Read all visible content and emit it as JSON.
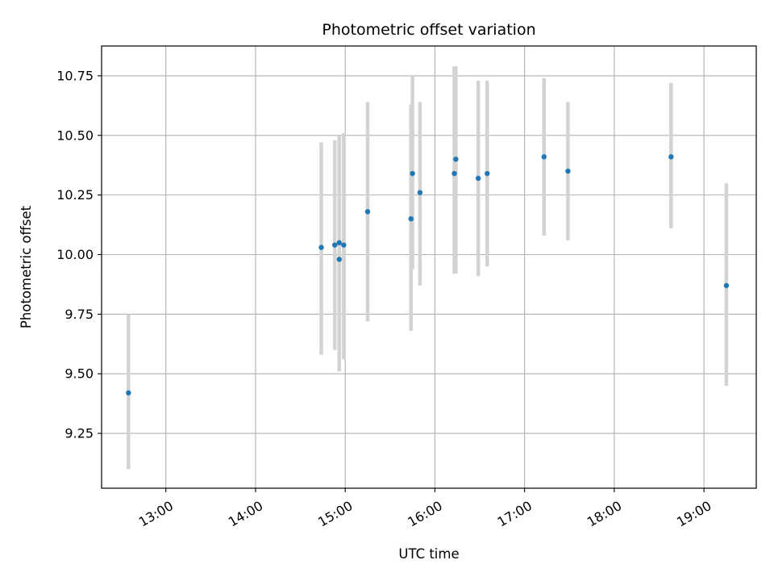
{
  "chart_data": {
    "type": "scatter",
    "title": "Photometric offset variation",
    "xlabel": "UTC time",
    "ylabel": "Photometric offset",
    "x_unit": "hours UTC",
    "xlim": [
      "12:17",
      "19:35"
    ],
    "ylim": [
      9.02,
      10.875
    ],
    "x_ticks": [
      "13:00",
      "14:00",
      "15:00",
      "16:00",
      "17:00",
      "18:00",
      "19:00"
    ],
    "y_ticks": [
      "9.25",
      "9.50",
      "9.75",
      "10.00",
      "10.25",
      "10.50",
      "10.75"
    ],
    "x_tick_rotation": "30 degrees",
    "grid": true,
    "legend": "none",
    "colors": {
      "point": "#1f77b4",
      "errorbar": "#d3d3d3",
      "grid": "#b0b0b0"
    },
    "points": [
      {
        "x": "12:35",
        "y": 9.42,
        "ylow": 9.1,
        "yhigh": 9.75
      },
      {
        "x": "14:44",
        "y": 10.03,
        "ylow": 9.58,
        "yhigh": 10.47
      },
      {
        "x": "14:53",
        "y": 10.04,
        "ylow": 9.6,
        "yhigh": 10.48
      },
      {
        "x": "14:56",
        "y": 9.98,
        "ylow": 9.51,
        "yhigh": 10.5
      },
      {
        "x": "14:56",
        "y": 10.05,
        "ylow": 9.52,
        "yhigh": 10.49
      },
      {
        "x": "14:59",
        "y": 10.04,
        "ylow": 9.56,
        "yhigh": 10.51
      },
      {
        "x": "15:15",
        "y": 10.18,
        "ylow": 9.72,
        "yhigh": 10.64
      },
      {
        "x": "15:44",
        "y": 10.15,
        "ylow": 9.68,
        "yhigh": 10.63
      },
      {
        "x": "15:45",
        "y": 10.34,
        "ylow": 9.94,
        "yhigh": 10.75
      },
      {
        "x": "15:50",
        "y": 10.26,
        "ylow": 9.87,
        "yhigh": 10.64
      },
      {
        "x": "16:13",
        "y": 10.34,
        "ylow": 9.92,
        "yhigh": 10.79
      },
      {
        "x": "16:14",
        "y": 10.4,
        "ylow": 9.92,
        "yhigh": 10.79
      },
      {
        "x": "16:29",
        "y": 10.32,
        "ylow": 9.91,
        "yhigh": 10.73
      },
      {
        "x": "16:35",
        "y": 10.34,
        "ylow": 9.95,
        "yhigh": 10.73
      },
      {
        "x": "17:13",
        "y": 10.41,
        "ylow": 10.08,
        "yhigh": 10.74
      },
      {
        "x": "17:29",
        "y": 10.35,
        "ylow": 10.06,
        "yhigh": 10.64
      },
      {
        "x": "18:38",
        "y": 10.41,
        "ylow": 10.11,
        "yhigh": 10.72
      },
      {
        "x": "19:15",
        "y": 9.87,
        "ylow": 9.45,
        "yhigh": 10.3
      }
    ]
  }
}
